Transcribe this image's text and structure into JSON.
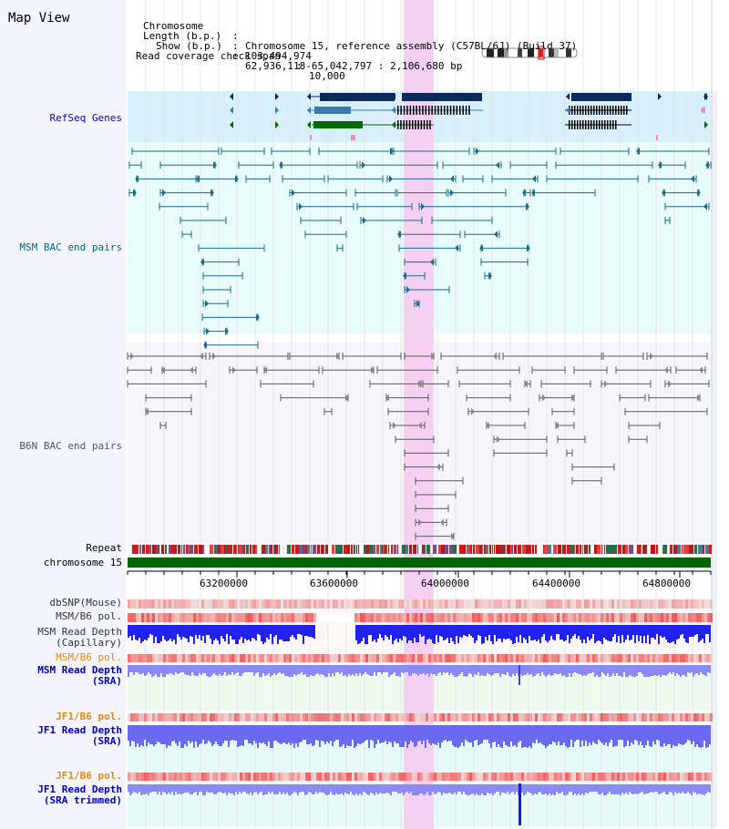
{
  "title": "Map View",
  "info": {
    "chromosome_key": "Chromosome",
    "chromosome_val": "Chromosome 15, reference assembly (C57BL/6J) (Build 37)",
    "length_key": "Length (b.p.)",
    "length_val": "103,494,974",
    "show_key": "Show (b.p.)",
    "show_val": "62,936,118-65,042,797 : 2,106,680 bp",
    "span_key": "Read coverage check span",
    "span_val": "10,000"
  },
  "tracks": {
    "refseq": "RefSeq Genes",
    "msm_bac": "MSM BAC end pairs",
    "b6n_bac": "B6N BAC end pairs",
    "repeat": "Repeat",
    "chrom": "chromosome 15",
    "dbsnp": "dbSNP(Mouse)",
    "msm_b6_pol_1": "MSM/B6 pol.",
    "msm_depth_cap_1": "MSM Read Depth",
    "msm_depth_cap_2": "(Capillary)",
    "msm_b6_pol_2": "MSM/B6 pol.",
    "msm_depth_sra_1": "MSM Read Depth",
    "msm_depth_sra_2": "(SRA)",
    "jf1_b6_pol_1": "JF1/B6 pol.",
    "jf1_depth_sra_1": "JF1 Read Depth",
    "jf1_depth_sra_2": "(SRA)",
    "jf1_b6_pol_2": "JF1/B6 pol.",
    "jf1_depth_trim_1": "JF1 Read Depth",
    "jf1_depth_trim_2": "(SRA trimmed)"
  },
  "axis": {
    "ticks": [
      "63200000",
      "63600000",
      "64000000",
      "64400000",
      "64800000"
    ]
  },
  "colors": {
    "sidebar": "#f4f4ff",
    "refseq_bg": "#d8f0fc",
    "msm_bg": "#e8fcfc",
    "b6n_bg": "#f6f6fa",
    "highlight": "#f6d0f2",
    "refseq_label": "#0000cc",
    "msm_label": "#006a8a",
    "b6n_label": "#555555",
    "orange": "#e88a00",
    "blue_label": "#0000cc",
    "gene_dark": "#0b2a5a",
    "gene_mid": "#3a7ab0",
    "gene_green": "#006a00",
    "msm_pair": "#1a6a8a",
    "b6n_pair": "#5a5a5a",
    "chrom_green": "#006400",
    "depth_blue": "#2222ee",
    "depth_light": "#8a8af6"
  }
}
